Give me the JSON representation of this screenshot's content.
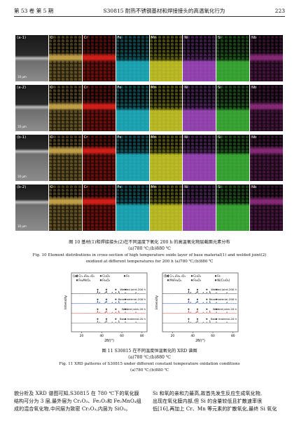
{
  "header": {
    "left": "第 53 卷  第 5 期",
    "center": "S30815 耐热不锈钢基材和焊接接头的高温氧化行为",
    "right": "223"
  },
  "figure10": {
    "rows": [
      {
        "label": "(a-1)",
        "scale": "10 μm"
      },
      {
        "label": "(a-2)",
        "scale": "10 μm"
      },
      {
        "label": "(b-1)",
        "scale": "10 μm"
      },
      {
        "label": "(b-2)",
        "scale": "10 μm"
      }
    ],
    "elements": [
      "",
      "O",
      "Cr",
      "Fe",
      "Mn",
      "Ni",
      "Si",
      "Nb"
    ],
    "colors": [
      "#8a8a8a",
      "#c7a44a",
      "#d8201a",
      "#21b7c8",
      "#cfcf2a",
      "#a54cc4",
      "#3fb73a",
      "#8a2a7a"
    ],
    "caption_cn": "图 10   基材(1)和焊接接头(2)在不同温度下氧化 200 h 的高温氧化物层截面元素分布",
    "caption_cn_sub": "(a)780 ℃;(b)880 ℃",
    "caption_en": "Fig. 10   Element distributions in cross-section of high temperature oxide layer of base material(1) and welded joint(2)",
    "caption_en_2": "oxidized at different temperatures for 200 h   (a)780 ℃;(b)880 ℃"
  },
  "figure11": {
    "panels": [
      {
        "label": "(a)",
        "legend": [
          "Cr₁.₃Fe₀.₇O₃",
          "Cr₂O₃",
          "Fe",
          "Fe₂MnO₄",
          "Fe₂O₃"
        ],
        "curves": [
          "Welded joint-200 h",
          "Base material-200 h",
          "Welded joint-20 h",
          "Base material-20 h"
        ],
        "xlabel": "2θ/(°)",
        "ylabel": "Intensity",
        "xticks": [
          "20",
          "40",
          "60",
          "80"
        ]
      },
      {
        "label": "(b)",
        "legend": [
          "Cr₁.₃Fe₀.₇O₃",
          "Cr₂O₃",
          "Fe",
          "MnFe₂O₄",
          "Fe₂O₃",
          "Ni(Cr₂O₄)"
        ],
        "curves": [
          "Welded joint-200 h",
          "Base material-200 h",
          "Welded joint-20 h",
          "Base material-20 h"
        ],
        "xlabel": "2θ/(°)",
        "ylabel": "Intensity",
        "xticks": [
          "20",
          "40",
          "60",
          "80"
        ]
      }
    ],
    "caption_cn": "图 11   S30815 在不同温度恒温氧化的 XRD 谱图",
    "caption_cn_sub": "(a)780 ℃;(b)880 ℃",
    "caption_en": "Fig. 11   XRD patterns of S30815 under different constant temperature oxidation conditions",
    "caption_en_sub": "(a)780 ℃;(b)880 ℃"
  },
  "body": {
    "left": [
      "貌分析及 XRD 谱图可知,S30815 在 780 ℃下的氧化膜",
      "结构可分为 3 层,最外层为 Cr₂O₃、Fe₂O₃和 Fe₂MnO₄组",
      "成的混合氧化物,中间层为致密 Cr₂O₃,内层为 SiO₂。"
    ],
    "right": [
      "Si 和氧的亲和力最高,故首先发生反应生成氧化物,",
      "出现在氧化膜内部,但 Si 的含量较低且扩散速率很",
      "低[16],再加上 Cr、Mn 等元素的扩散氧化,最终 Si 氧化"
    ]
  }
}
